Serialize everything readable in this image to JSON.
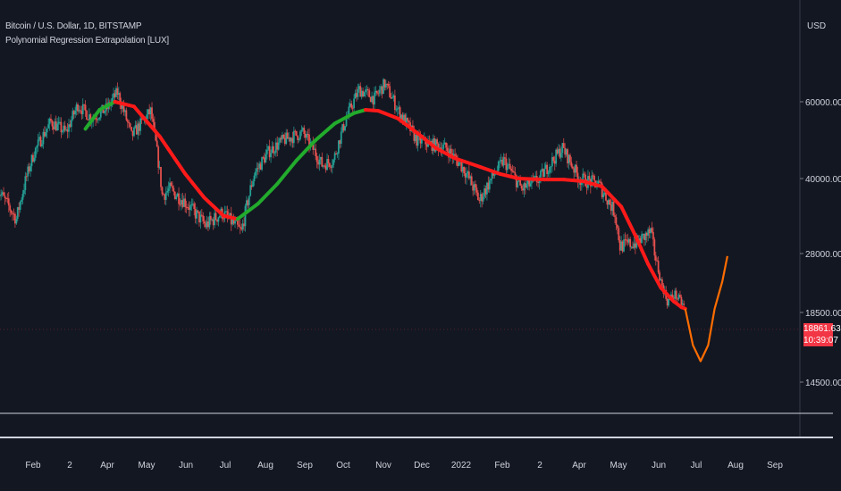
{
  "legend": {
    "symbol": "Bitcoin / U.S. Dollar, 1D, BITSTAMP",
    "indicator": "Polynomial Regression Extrapolation [LUX]"
  },
  "price_axis": {
    "unit": "USD"
  },
  "last_price": {
    "price": "18861.63",
    "countdown": "10:39:07"
  },
  "colors": {
    "background": "#131722",
    "up_candle": "#26a69a",
    "down_candle": "#ef5350",
    "regression_up": "#22ab2c",
    "regression_down": "#ff1a1a",
    "extrapolation": "#ff6d00",
    "price_tag": "#f23645"
  },
  "chart_data": {
    "type": "line",
    "title": "Bitcoin / U.S. Dollar, 1D, BITSTAMP",
    "subtitle": "Polynomial Regression Extrapolation [LUX]",
    "xlabel": "",
    "ylabel": "",
    "x_ticks": [
      "Feb",
      "2",
      "Apr",
      "May",
      "Jun",
      "Jul",
      "Aug",
      "Sep",
      "Oct",
      "Nov",
      "Dec",
      "2022",
      "Feb",
      "2",
      "Apr",
      "May",
      "Jun",
      "Jul",
      "Aug",
      "Sep"
    ],
    "y_ticks": [
      "60000.00",
      "40000.00",
      "28000.00",
      "18500.00",
      "14500.00"
    ],
    "series": [
      {
        "kind": "candles",
        "note": "approximate daily close path",
        "x": [
          "2021-01-10",
          "2021-01-25",
          "2021-02-08",
          "2021-02-21",
          "2021-03-05",
          "2021-03-14",
          "2021-03-25",
          "2021-04-06",
          "2021-04-14",
          "2021-04-25",
          "2021-05-10",
          "2021-05-19",
          "2021-05-25",
          "2021-06-05",
          "2021-06-22",
          "2021-07-05",
          "2021-07-20",
          "2021-07-30",
          "2021-08-10",
          "2021-08-22",
          "2021-09-06",
          "2021-09-21",
          "2021-09-30",
          "2021-10-10",
          "2021-10-20",
          "2021-11-01",
          "2021-11-09",
          "2021-11-20",
          "2021-12-04",
          "2021-12-15",
          "2021-12-27",
          "2022-01-10",
          "2022-01-22",
          "2022-02-10",
          "2022-02-24",
          "2022-03-10",
          "2022-03-28",
          "2022-04-10",
          "2022-04-25",
          "2022-05-08",
          "2022-05-12",
          "2022-05-25",
          "2022-06-05",
          "2022-06-13",
          "2022-06-18",
          "2022-06-24",
          "2022-07-01"
        ],
        "close": [
          38000,
          33000,
          46000,
          54000,
          51000,
          59000,
          55000,
          58000,
          63000,
          50000,
          57000,
          37000,
          38000,
          36000,
          32000,
          34000,
          31000,
          41000,
          46000,
          49000,
          51000,
          43000,
          44000,
          55000,
          64000,
          61000,
          66000,
          57000,
          49000,
          48000,
          47000,
          42000,
          36000,
          44000,
          38000,
          40000,
          47000,
          40000,
          39000,
          34000,
          29000,
          29500,
          31000,
          23000,
          20000,
          21000,
          19300
        ]
      },
      {
        "name": "",
        "kind": "polynomial regression",
        "x": [
          "2021-03-20",
          "2021-03-31",
          "2021-04-12",
          "2021-04-27",
          "2021-05-17",
          "2021-06-06",
          "2021-06-21",
          "2021-07-06",
          "2021-07-17",
          "2021-08-02",
          "2021-08-17",
          "2021-09-01",
          "2021-09-16",
          "2021-10-01",
          "2021-10-16",
          "2021-10-25",
          "2021-11-04",
          "2021-11-19",
          "2021-12-04",
          "2021-12-19",
          "2022-01-03",
          "2022-01-23",
          "2022-02-07",
          "2022-02-22",
          "2022-03-14",
          "2022-03-29",
          "2022-04-13",
          "2022-04-28",
          "2022-05-13",
          "2022-05-24",
          "2022-06-03",
          "2022-06-13",
          "2022-06-23",
          "2022-06-29",
          "2022-07-02"
        ],
        "y": [
          52000,
          57500,
          60000,
          58500,
          50000,
          41000,
          36500,
          33500,
          33000,
          35500,
          39000,
          44000,
          49000,
          53500,
          56500,
          57500,
          57200,
          55000,
          51000,
          47000,
          44500,
          42500,
          41000,
          40000,
          39800,
          39800,
          39500,
          38500,
          35000,
          30500,
          26000,
          22000,
          20000,
          19200,
          19000
        ]
      },
      {
        "name": "",
        "kind": "extrapolation",
        "x": [
          "2022-07-02",
          "2022-07-08",
          "2022-07-14",
          "2022-07-20",
          "2022-07-25",
          "2022-07-31",
          "2022-08-04"
        ],
        "y": [
          19000,
          16500,
          15600,
          16500,
          19000,
          23000,
          27500
        ]
      }
    ]
  }
}
